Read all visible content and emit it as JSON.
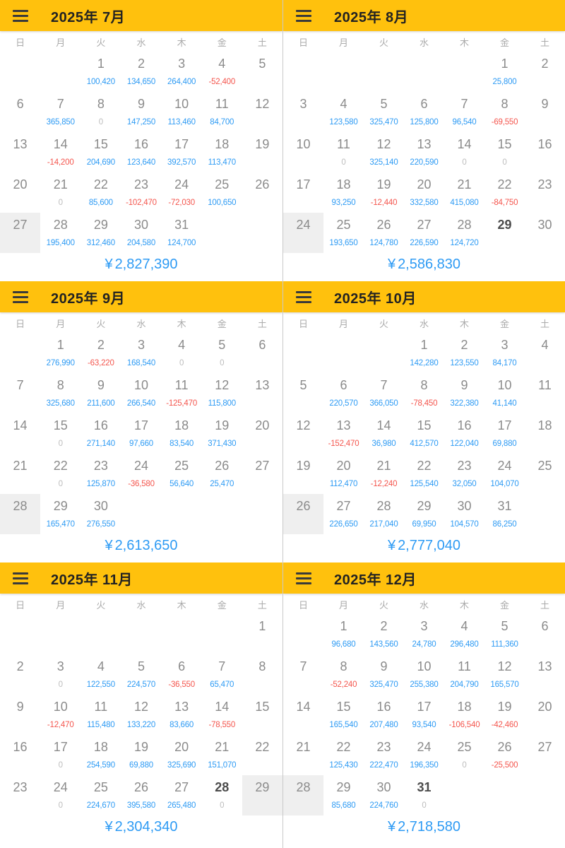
{
  "colors": {
    "header_bg": "#FFC10D",
    "amount_positive": "#2e9bf4",
    "amount_negative": "#f4564e",
    "amount_zero": "#bdbdbd",
    "total_text": "#2e9bf4",
    "highlight_bg": "#efefef"
  },
  "currency_symbol": "¥",
  "weekday_labels": [
    "日",
    "月",
    "火",
    "水",
    "木",
    "金",
    "土"
  ],
  "months": [
    {
      "title": "2025年 7月",
      "total": "2,827,390",
      "weeks": [
        [
          {},
          {},
          {
            "day": "1",
            "amount": "100,420"
          },
          {
            "day": "2",
            "amount": "134,650"
          },
          {
            "day": "3",
            "amount": "264,400"
          },
          {
            "day": "4",
            "amount": "-52,400"
          },
          {
            "day": "5"
          }
        ],
        [
          {
            "day": "6"
          },
          {
            "day": "7",
            "amount": "365,850"
          },
          {
            "day": "8",
            "amount": "0"
          },
          {
            "day": "9",
            "amount": "147,250"
          },
          {
            "day": "10",
            "amount": "113,460"
          },
          {
            "day": "11",
            "amount": "84,700"
          },
          {
            "day": "12"
          }
        ],
        [
          {
            "day": "13"
          },
          {
            "day": "14",
            "amount": "-14,200"
          },
          {
            "day": "15",
            "amount": "204,690"
          },
          {
            "day": "16",
            "amount": "123,640"
          },
          {
            "day": "17",
            "amount": "392,570"
          },
          {
            "day": "18",
            "amount": "113,470"
          },
          {
            "day": "19"
          }
        ],
        [
          {
            "day": "20"
          },
          {
            "day": "21",
            "amount": "0"
          },
          {
            "day": "22",
            "amount": "85,600"
          },
          {
            "day": "23",
            "amount": "-102,470"
          },
          {
            "day": "24",
            "amount": "-72,030"
          },
          {
            "day": "25",
            "amount": "100,650"
          },
          {
            "day": "26"
          }
        ],
        [
          {
            "day": "27",
            "hl": true
          },
          {
            "day": "28",
            "amount": "195,400"
          },
          {
            "day": "29",
            "amount": "312,460"
          },
          {
            "day": "30",
            "amount": "204,580"
          },
          {
            "day": "31",
            "amount": "124,700"
          },
          {},
          {}
        ]
      ]
    },
    {
      "title": "2025年 8月",
      "total": "2,586,830",
      "weeks": [
        [
          {},
          {},
          {},
          {},
          {},
          {
            "day": "1",
            "amount": "25,800"
          },
          {
            "day": "2"
          }
        ],
        [
          {
            "day": "3"
          },
          {
            "day": "4",
            "amount": "123,580"
          },
          {
            "day": "5",
            "amount": "325,470"
          },
          {
            "day": "6",
            "amount": "125,800"
          },
          {
            "day": "7",
            "amount": "96,540"
          },
          {
            "day": "8",
            "amount": "-69,550"
          },
          {
            "day": "9"
          }
        ],
        [
          {
            "day": "10"
          },
          {
            "day": "11",
            "amount": "0"
          },
          {
            "day": "12",
            "amount": "325,140"
          },
          {
            "day": "13",
            "amount": "220,590"
          },
          {
            "day": "14",
            "amount": "0"
          },
          {
            "day": "15",
            "amount": "0"
          },
          {
            "day": "16"
          }
        ],
        [
          {
            "day": "17"
          },
          {
            "day": "18",
            "amount": "93,250"
          },
          {
            "day": "19",
            "amount": "-12,440"
          },
          {
            "day": "20",
            "amount": "332,580"
          },
          {
            "day": "21",
            "amount": "415,080"
          },
          {
            "day": "22",
            "amount": "-84,750"
          },
          {
            "day": "23"
          }
        ],
        [
          {
            "day": "24",
            "hl": true
          },
          {
            "day": "25",
            "amount": "193,650"
          },
          {
            "day": "26",
            "amount": "124,780"
          },
          {
            "day": "27",
            "amount": "226,590"
          },
          {
            "day": "28",
            "amount": "124,720"
          },
          {
            "day": "29",
            "bold": true
          },
          {
            "day": "30"
          }
        ]
      ]
    },
    {
      "title": "2025年 9月",
      "total": "2,613,650",
      "weeks": [
        [
          {},
          {
            "day": "1",
            "amount": "276,990"
          },
          {
            "day": "2",
            "amount": "-63,220"
          },
          {
            "day": "3",
            "amount": "168,540"
          },
          {
            "day": "4",
            "amount": "0"
          },
          {
            "day": "5",
            "amount": "0"
          },
          {
            "day": "6"
          }
        ],
        [
          {
            "day": "7"
          },
          {
            "day": "8",
            "amount": "325,680"
          },
          {
            "day": "9",
            "amount": "211,600"
          },
          {
            "day": "10",
            "amount": "266,540"
          },
          {
            "day": "11",
            "amount": "-125,470"
          },
          {
            "day": "12",
            "amount": "115,800"
          },
          {
            "day": "13"
          }
        ],
        [
          {
            "day": "14"
          },
          {
            "day": "15",
            "amount": "0"
          },
          {
            "day": "16",
            "amount": "271,140"
          },
          {
            "day": "17",
            "amount": "97,660"
          },
          {
            "day": "18",
            "amount": "83,540"
          },
          {
            "day": "19",
            "amount": "371,430"
          },
          {
            "day": "20"
          }
        ],
        [
          {
            "day": "21"
          },
          {
            "day": "22",
            "amount": "0"
          },
          {
            "day": "23",
            "amount": "125,870"
          },
          {
            "day": "24",
            "amount": "-36,580"
          },
          {
            "day": "25",
            "amount": "56,640"
          },
          {
            "day": "26",
            "amount": "25,470"
          },
          {
            "day": "27"
          }
        ],
        [
          {
            "day": "28",
            "hl": true
          },
          {
            "day": "29",
            "amount": "165,470"
          },
          {
            "day": "30",
            "amount": "276,550"
          },
          {},
          {},
          {},
          {}
        ]
      ]
    },
    {
      "title": "2025年 10月",
      "total": "2,777,040",
      "weeks": [
        [
          {},
          {},
          {},
          {
            "day": "1",
            "amount": "142,280"
          },
          {
            "day": "2",
            "amount": "123,550"
          },
          {
            "day": "3",
            "amount": "84,170"
          },
          {
            "day": "4"
          }
        ],
        [
          {
            "day": "5"
          },
          {
            "day": "6",
            "amount": "220,570"
          },
          {
            "day": "7",
            "amount": "366,050"
          },
          {
            "day": "8",
            "amount": "-78,450"
          },
          {
            "day": "9",
            "amount": "322,380"
          },
          {
            "day": "10",
            "amount": "41,140"
          },
          {
            "day": "11"
          }
        ],
        [
          {
            "day": "12"
          },
          {
            "day": "13",
            "amount": "-152,470"
          },
          {
            "day": "14",
            "amount": "36,980"
          },
          {
            "day": "15",
            "amount": "412,570"
          },
          {
            "day": "16",
            "amount": "122,040"
          },
          {
            "day": "17",
            "amount": "69,880"
          },
          {
            "day": "18"
          }
        ],
        [
          {
            "day": "19"
          },
          {
            "day": "20",
            "amount": "112,470"
          },
          {
            "day": "21",
            "amount": "-12,240"
          },
          {
            "day": "22",
            "amount": "125,540"
          },
          {
            "day": "23",
            "amount": "32,050"
          },
          {
            "day": "24",
            "amount": "104,070"
          },
          {
            "day": "25"
          }
        ],
        [
          {
            "day": "26",
            "hl": true
          },
          {
            "day": "27",
            "amount": "226,650"
          },
          {
            "day": "28",
            "amount": "217,040"
          },
          {
            "day": "29",
            "amount": "69,950"
          },
          {
            "day": "30",
            "amount": "104,570"
          },
          {
            "day": "31",
            "amount": "86,250"
          },
          {}
        ]
      ]
    },
    {
      "title": "2025年 11月",
      "total": "2,304,340",
      "weeks": [
        [
          {},
          {},
          {},
          {},
          {},
          {},
          {
            "day": "1"
          }
        ],
        [
          {
            "day": "2"
          },
          {
            "day": "3",
            "amount": "0"
          },
          {
            "day": "4",
            "amount": "122,550"
          },
          {
            "day": "5",
            "amount": "224,570"
          },
          {
            "day": "6",
            "amount": "-36,550"
          },
          {
            "day": "7",
            "amount": "65,470"
          },
          {
            "day": "8"
          }
        ],
        [
          {
            "day": "9"
          },
          {
            "day": "10",
            "amount": "-12,470"
          },
          {
            "day": "11",
            "amount": "115,480"
          },
          {
            "day": "12",
            "amount": "133,220"
          },
          {
            "day": "13",
            "amount": "83,660"
          },
          {
            "day": "14",
            "amount": "-78,550"
          },
          {
            "day": "15"
          }
        ],
        [
          {
            "day": "16"
          },
          {
            "day": "17",
            "amount": "0"
          },
          {
            "day": "18",
            "amount": "254,590"
          },
          {
            "day": "19",
            "amount": "69,880"
          },
          {
            "day": "20",
            "amount": "325,690"
          },
          {
            "day": "21",
            "amount": "151,070"
          },
          {
            "day": "22"
          }
        ],
        [
          {
            "day": "23"
          },
          {
            "day": "24",
            "amount": "0"
          },
          {
            "day": "25",
            "amount": "224,670"
          },
          {
            "day": "26",
            "amount": "395,580"
          },
          {
            "day": "27",
            "amount": "265,480"
          },
          {
            "day": "28",
            "amount": "0",
            "bold": true
          },
          {
            "day": "29",
            "hl": true
          }
        ]
      ]
    },
    {
      "title": "2025年 12月",
      "total": "2,718,580",
      "weeks": [
        [
          {},
          {
            "day": "1",
            "amount": "96,680"
          },
          {
            "day": "2",
            "amount": "143,560"
          },
          {
            "day": "3",
            "amount": "24,780"
          },
          {
            "day": "4",
            "amount": "296,480"
          },
          {
            "day": "5",
            "amount": "111,360"
          },
          {
            "day": "6"
          }
        ],
        [
          {
            "day": "7"
          },
          {
            "day": "8",
            "amount": "-52,240"
          },
          {
            "day": "9",
            "amount": "325,470"
          },
          {
            "day": "10",
            "amount": "255,380"
          },
          {
            "day": "11",
            "amount": "204,790"
          },
          {
            "day": "12",
            "amount": "165,570"
          },
          {
            "day": "13"
          }
        ],
        [
          {
            "day": "14"
          },
          {
            "day": "15",
            "amount": "165,540"
          },
          {
            "day": "16",
            "amount": "207,480"
          },
          {
            "day": "17",
            "amount": "93,540"
          },
          {
            "day": "18",
            "amount": "-106,540"
          },
          {
            "day": "19",
            "amount": "-42,460"
          },
          {
            "day": "20"
          }
        ],
        [
          {
            "day": "21"
          },
          {
            "day": "22",
            "amount": "125,430"
          },
          {
            "day": "23",
            "amount": "222,470"
          },
          {
            "day": "24",
            "amount": "196,350"
          },
          {
            "day": "25",
            "amount": "0"
          },
          {
            "day": "26",
            "amount": "-25,500"
          },
          {
            "day": "27"
          }
        ],
        [
          {
            "day": "28",
            "hl": true
          },
          {
            "day": "29",
            "amount": "85,680"
          },
          {
            "day": "30",
            "amount": "224,760"
          },
          {
            "day": "31",
            "amount": "0",
            "bold": true
          },
          {},
          {},
          {}
        ]
      ]
    }
  ]
}
